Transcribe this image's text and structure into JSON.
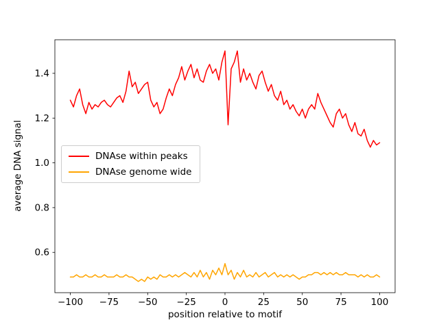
{
  "figure": {
    "background": "#ffffff"
  },
  "chart_data": {
    "type": "line",
    "title": "",
    "xlabel": "position relative to motif",
    "ylabel": "average DNA signal",
    "xlim": [
      -110,
      110
    ],
    "ylim": [
      0.42,
      1.55
    ],
    "grid": false,
    "legend_position": "center-left",
    "xtick_values": [
      -100,
      -75,
      -50,
      -25,
      0,
      25,
      50,
      75,
      100
    ],
    "xtick_labels": [
      "−100",
      "−75",
      "−50",
      "−25",
      "0",
      "25",
      "50",
      "75",
      "100"
    ],
    "ytick_values": [
      0.6,
      0.8,
      1.0,
      1.2,
      1.4
    ],
    "ytick_labels": [
      "0.6",
      "0.8",
      "1.0",
      "1.2",
      "1.4"
    ],
    "x": [
      -100,
      -98,
      -96,
      -94,
      -92,
      -90,
      -88,
      -86,
      -84,
      -82,
      -80,
      -78,
      -76,
      -74,
      -72,
      -70,
      -68,
      -66,
      -64,
      -62,
      -60,
      -58,
      -56,
      -54,
      -52,
      -50,
      -48,
      -46,
      -44,
      -42,
      -40,
      -38,
      -36,
      -34,
      -32,
      -30,
      -28,
      -26,
      -24,
      -22,
      -20,
      -18,
      -16,
      -14,
      -12,
      -10,
      -8,
      -6,
      -4,
      -2,
      0,
      2,
      4,
      6,
      8,
      10,
      12,
      14,
      16,
      18,
      20,
      22,
      24,
      26,
      28,
      30,
      32,
      34,
      36,
      38,
      40,
      42,
      44,
      46,
      48,
      50,
      52,
      54,
      56,
      58,
      60,
      62,
      64,
      66,
      68,
      70,
      72,
      74,
      76,
      78,
      80,
      82,
      84,
      86,
      88,
      90,
      92,
      94,
      96,
      98,
      100
    ],
    "series": [
      {
        "name": "DNAse within peaks",
        "color": "#ff0000",
        "values": [
          1.28,
          1.25,
          1.3,
          1.33,
          1.26,
          1.22,
          1.27,
          1.24,
          1.26,
          1.25,
          1.27,
          1.28,
          1.26,
          1.25,
          1.27,
          1.29,
          1.3,
          1.27,
          1.32,
          1.41,
          1.34,
          1.36,
          1.31,
          1.33,
          1.35,
          1.36,
          1.28,
          1.25,
          1.27,
          1.22,
          1.24,
          1.29,
          1.33,
          1.3,
          1.35,
          1.38,
          1.43,
          1.37,
          1.41,
          1.44,
          1.38,
          1.42,
          1.37,
          1.36,
          1.41,
          1.44,
          1.4,
          1.42,
          1.37,
          1.45,
          1.5,
          1.17,
          1.42,
          1.45,
          1.5,
          1.36,
          1.42,
          1.37,
          1.4,
          1.36,
          1.33,
          1.39,
          1.41,
          1.36,
          1.32,
          1.35,
          1.3,
          1.28,
          1.32,
          1.26,
          1.28,
          1.24,
          1.26,
          1.23,
          1.21,
          1.24,
          1.2,
          1.24,
          1.26,
          1.24,
          1.31,
          1.27,
          1.24,
          1.21,
          1.18,
          1.16,
          1.22,
          1.24,
          1.2,
          1.22,
          1.17,
          1.14,
          1.18,
          1.13,
          1.12,
          1.15,
          1.1,
          1.07,
          1.1,
          1.08,
          1.09
        ]
      },
      {
        "name": "DNAse genome wide",
        "color": "#ffa500",
        "values": [
          0.49,
          0.49,
          0.5,
          0.49,
          0.49,
          0.5,
          0.49,
          0.49,
          0.5,
          0.49,
          0.49,
          0.5,
          0.49,
          0.49,
          0.49,
          0.5,
          0.49,
          0.49,
          0.5,
          0.49,
          0.49,
          0.48,
          0.47,
          0.48,
          0.47,
          0.49,
          0.48,
          0.49,
          0.48,
          0.5,
          0.49,
          0.49,
          0.5,
          0.49,
          0.5,
          0.49,
          0.5,
          0.51,
          0.5,
          0.49,
          0.51,
          0.49,
          0.52,
          0.49,
          0.51,
          0.48,
          0.52,
          0.5,
          0.53,
          0.5,
          0.55,
          0.5,
          0.52,
          0.48,
          0.51,
          0.49,
          0.52,
          0.49,
          0.5,
          0.49,
          0.51,
          0.49,
          0.5,
          0.51,
          0.49,
          0.5,
          0.51,
          0.49,
          0.5,
          0.49,
          0.5,
          0.49,
          0.5,
          0.49,
          0.48,
          0.49,
          0.49,
          0.5,
          0.5,
          0.51,
          0.51,
          0.5,
          0.51,
          0.5,
          0.51,
          0.5,
          0.51,
          0.5,
          0.5,
          0.51,
          0.5,
          0.5,
          0.5,
          0.49,
          0.5,
          0.49,
          0.5,
          0.49,
          0.49,
          0.5,
          0.49
        ]
      }
    ]
  }
}
